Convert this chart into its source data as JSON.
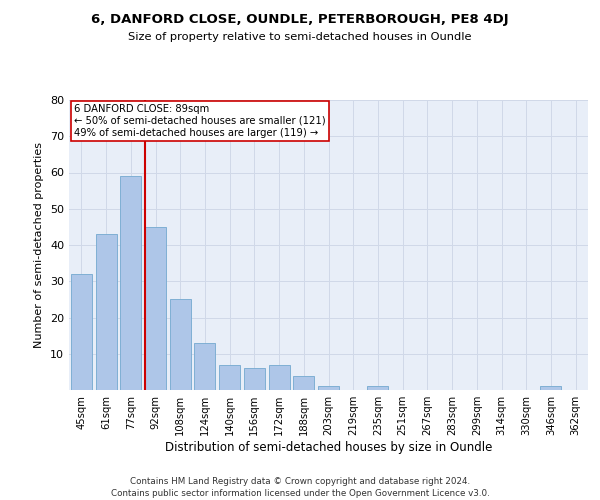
{
  "title": "6, DANFORD CLOSE, OUNDLE, PETERBOROUGH, PE8 4DJ",
  "subtitle": "Size of property relative to semi-detached houses in Oundle",
  "xlabel": "Distribution of semi-detached houses by size in Oundle",
  "ylabel": "Number of semi-detached properties",
  "categories": [
    "45sqm",
    "61sqm",
    "77sqm",
    "92sqm",
    "108sqm",
    "124sqm",
    "140sqm",
    "156sqm",
    "172sqm",
    "188sqm",
    "203sqm",
    "219sqm",
    "235sqm",
    "251sqm",
    "267sqm",
    "283sqm",
    "299sqm",
    "314sqm",
    "330sqm",
    "346sqm",
    "362sqm"
  ],
  "values": [
    32,
    43,
    59,
    45,
    25,
    13,
    7,
    6,
    7,
    4,
    1,
    0,
    1,
    0,
    0,
    0,
    0,
    0,
    0,
    1,
    0
  ],
  "bar_color": "#aec6e8",
  "bar_edge_color": "#7fafd4",
  "vline_x_index": 3,
  "vline_color": "#cc0000",
  "annotation_title": "6 DANFORD CLOSE: 89sqm",
  "annotation_line1": "← 50% of semi-detached houses are smaller (121)",
  "annotation_line2": "49% of semi-detached houses are larger (119) →",
  "annotation_box_color": "#ffffff",
  "annotation_box_edge": "#cc0000",
  "ylim": [
    0,
    80
  ],
  "yticks": [
    0,
    10,
    20,
    30,
    40,
    50,
    60,
    70,
    80
  ],
  "grid_color": "#d0d8e8",
  "background_color": "#e8eef8",
  "footer_line1": "Contains HM Land Registry data © Crown copyright and database right 2024.",
  "footer_line2": "Contains public sector information licensed under the Open Government Licence v3.0."
}
